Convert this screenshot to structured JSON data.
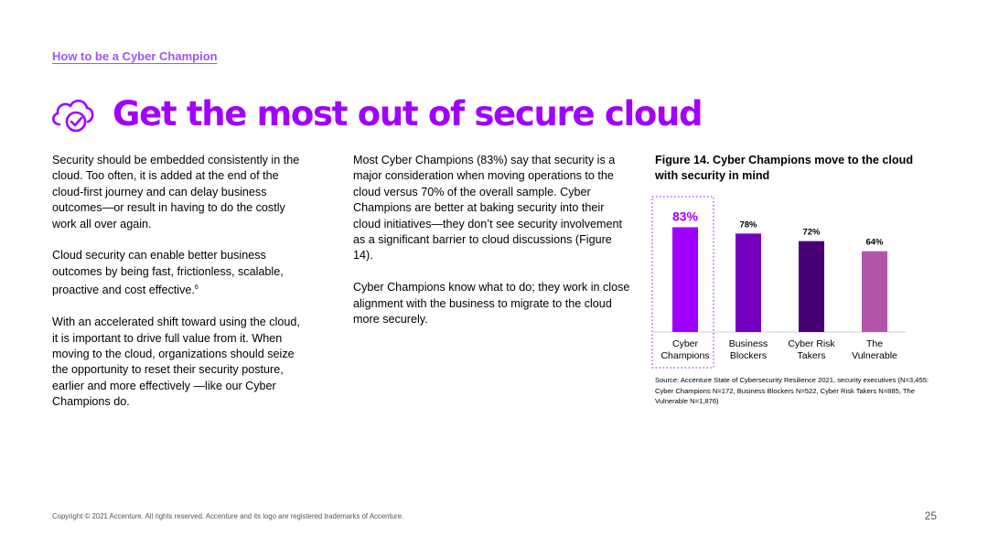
{
  "header": {
    "section_link": "How to be a Cyber Champion",
    "title": "Get the most out of secure cloud",
    "icon": "cloud-check-icon"
  },
  "body": {
    "col1": [
      "Security should be embedded consistently in the cloud. Too often, it is added at the end of the cloud-first journey and can delay business outcomes—or result in having to do the costly work all over again.",
      "Cloud security can enable better business outcomes by being fast, frictionless, scalable, proactive and cost effective.",
      "With an accelerated shift toward using the cloud, it is important to drive full value from it. When moving to the cloud, organizations should seize the opportunity to reset their security posture, earlier and more effectively —like our Cyber Champions do."
    ],
    "footnote_ref": "6",
    "col2": [
      "Most Cyber Champions (83%) say that security is a major consideration when moving operations to the cloud versus 70% of the overall sample. Cyber Champions are better at baking security into their cloud initiatives—they don’t see security involvement as a significant barrier to cloud discussions (Figure 14).",
      "Cyber Champions know what to do; they work in close alignment with the business to migrate to the cloud more securely."
    ]
  },
  "figure": {
    "title": "Figure 14. Cyber Champions move to the cloud with security in mind",
    "source": "Source: Accenture State of Cybersecurity Resilience 2021, security executives (N=3,455: Cyber Champions N=172, Business Blockers N=522, Cyber Risk Takers N=885, The Vulnerable N=1,876)"
  },
  "chart_data": {
    "type": "bar",
    "categories": [
      [
        "Cyber",
        "Champions"
      ],
      [
        "Business",
        "Blockers"
      ],
      [
        "Cyber Risk",
        "Takers"
      ],
      [
        "The",
        "Vulnerable"
      ]
    ],
    "values": [
      83,
      78,
      72,
      64
    ],
    "value_labels": [
      "83%",
      "78%",
      "72%",
      "64%"
    ],
    "colors": [
      "#a100ff",
      "#7500c0",
      "#460073",
      "#b455aa"
    ],
    "label_color_highlight": "#a100ff",
    "ylim": [
      0,
      100
    ],
    "highlighted_index": 0
  },
  "footer": {
    "copyright": "Copyright © 2021 Accenture. All rights reserved. Accenture and its logo are registered trademarks of Accenture.",
    "page_number": "25"
  },
  "colors": {
    "accent": "#a100ff",
    "link": "#a055f5"
  }
}
